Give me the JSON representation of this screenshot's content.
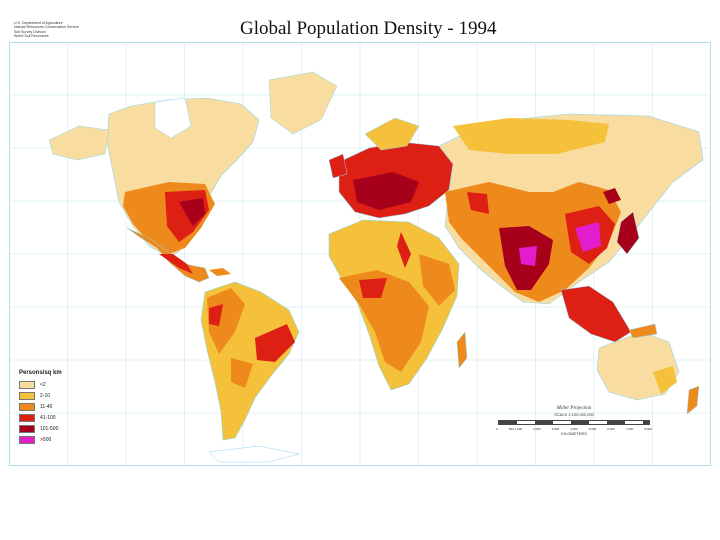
{
  "title": "Global Population Density - 1994",
  "agency": {
    "lines": [
      "U.S. Department of Agriculture",
      "Natural Resources Conservation Service",
      "Soil Survey Division",
      "World Soil Resources"
    ]
  },
  "legend": {
    "title": "Persons/sq km",
    "items": [
      {
        "label": "<2",
        "color": "#f9dca0"
      },
      {
        "label": "2-10",
        "color": "#f5c13a"
      },
      {
        "label": "11-40",
        "color": "#ee8a1c"
      },
      {
        "label": "41-100",
        "color": "#dd1f14"
      },
      {
        "label": "101-500",
        "color": "#a6001a"
      },
      {
        "label": ">500",
        "color": "#e21dcc"
      }
    ]
  },
  "scale": {
    "projection": "Miller Projection",
    "scale_text": "SCALE 1:100,000,000",
    "unit": "KILOMETERS",
    "ticks": [
      "0",
      "500 1,000",
      "2,000",
      "3,000",
      "4,000",
      "5,000",
      "6,000",
      "7,000",
      "8,000"
    ]
  },
  "map": {
    "ocean_color": "#ffffff",
    "graticule_color": "#bfe6f0",
    "coast_color": "#8fd6e8"
  }
}
